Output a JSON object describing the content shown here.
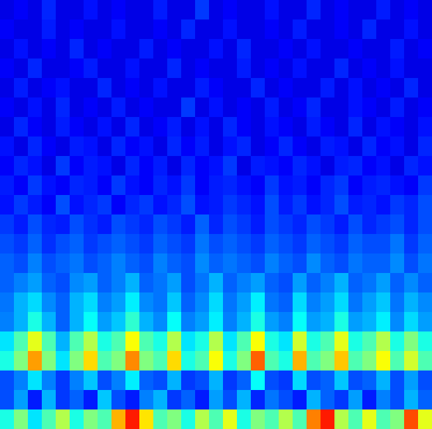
{
  "chart_data": {
    "type": "heatmap",
    "tick_labels": false,
    "xlim": [
      0,
      31
    ],
    "ylim": [
      0,
      22
    ],
    "color_range": [
      0,
      1
    ],
    "cells": [
      [
        0.1,
        0.12,
        0.1,
        0.16,
        0.1,
        0.1,
        0.14,
        0.1,
        0.12,
        0.1,
        0.1,
        0.15,
        0.1,
        0.1,
        0.18,
        0.1,
        0.12,
        0.1,
        0.1,
        0.14,
        0.1,
        0.1,
        0.16,
        0.1,
        0.12,
        0.1,
        0.1,
        0.15,
        0.1,
        0.12,
        0.1
      ],
      [
        0.12,
        0.1,
        0.1,
        0.15,
        0.1,
        0.12,
        0.1,
        0.1,
        0.14,
        0.1,
        0.1,
        0.12,
        0.1,
        0.16,
        0.1,
        0.1,
        0.14,
        0.1,
        0.1,
        0.12,
        0.1,
        0.15,
        0.1,
        0.1,
        0.12,
        0.1,
        0.16,
        0.1,
        0.1,
        0.14,
        0.1
      ],
      [
        0.1,
        0.14,
        0.1,
        0.12,
        0.1,
        0.16,
        0.1,
        0.12,
        0.1,
        0.1,
        0.15,
        0.1,
        0.12,
        0.1,
        0.1,
        0.14,
        0.1,
        0.16,
        0.1,
        0.1,
        0.12,
        0.1,
        0.14,
        0.1,
        0.1,
        0.12,
        0.1,
        0.1,
        0.15,
        0.1,
        0.12
      ],
      [
        0.12,
        0.1,
        0.16,
        0.1,
        0.1,
        0.12,
        0.15,
        0.1,
        0.1,
        0.14,
        0.1,
        0.1,
        0.16,
        0.1,
        0.12,
        0.1,
        0.1,
        0.15,
        0.1,
        0.12,
        0.1,
        0.14,
        0.1,
        0.1,
        0.16,
        0.1,
        0.12,
        0.1,
        0.14,
        0.1,
        0.1
      ],
      [
        0.1,
        0.15,
        0.1,
        0.12,
        0.14,
        0.1,
        0.1,
        0.16,
        0.1,
        0.12,
        0.1,
        0.14,
        0.1,
        0.1,
        0.15,
        0.12,
        0.1,
        0.1,
        0.16,
        0.1,
        0.12,
        0.1,
        0.1,
        0.15,
        0.1,
        0.14,
        0.1,
        0.12,
        0.1,
        0.16,
        0.1
      ],
      [
        0.12,
        0.1,
        0.14,
        0.1,
        0.16,
        0.1,
        0.12,
        0.1,
        0.15,
        0.1,
        0.12,
        0.1,
        0.1,
        0.18,
        0.1,
        0.14,
        0.1,
        0.12,
        0.1,
        0.15,
        0.1,
        0.12,
        0.16,
        0.1,
        0.1,
        0.14,
        0.12,
        0.1,
        0.15,
        0.1,
        0.12
      ],
      [
        0.1,
        0.16,
        0.12,
        0.1,
        0.15,
        0.12,
        0.1,
        0.14,
        0.1,
        0.16,
        0.1,
        0.12,
        0.15,
        0.1,
        0.14,
        0.1,
        0.16,
        0.12,
        0.1,
        0.14,
        0.12,
        0.1,
        0.15,
        0.12,
        0.1,
        0.16,
        0.1,
        0.14,
        0.12,
        0.1,
        0.14
      ],
      [
        0.14,
        0.1,
        0.16,
        0.12,
        0.1,
        0.15,
        0.14,
        0.1,
        0.16,
        0.12,
        0.14,
        0.1,
        0.16,
        0.12,
        0.15,
        0.1,
        0.14,
        0.16,
        0.1,
        0.12,
        0.16,
        0.12,
        0.1,
        0.15,
        0.14,
        0.1,
        0.16,
        0.12,
        0.14,
        0.1,
        0.16
      ],
      [
        0.12,
        0.16,
        0.14,
        0.1,
        0.18,
        0.12,
        0.15,
        0.14,
        0.1,
        0.16,
        0.12,
        0.15,
        0.1,
        0.16,
        0.12,
        0.14,
        0.18,
        0.1,
        0.15,
        0.14,
        0.12,
        0.16,
        0.14,
        0.1,
        0.15,
        0.16,
        0.12,
        0.14,
        0.1,
        0.16,
        0.14
      ],
      [
        0.15,
        0.12,
        0.18,
        0.14,
        0.12,
        0.16,
        0.15,
        0.12,
        0.18,
        0.14,
        0.12,
        0.16,
        0.14,
        0.18,
        0.12,
        0.15,
        0.16,
        0.14,
        0.12,
        0.18,
        0.14,
        0.15,
        0.12,
        0.16,
        0.18,
        0.12,
        0.15,
        0.16,
        0.14,
        0.12,
        0.18
      ],
      [
        0.14,
        0.18,
        0.15,
        0.12,
        0.2,
        0.14,
        0.16,
        0.18,
        0.12,
        0.16,
        0.18,
        0.14,
        0.16,
        0.2,
        0.14,
        0.15,
        0.18,
        0.16,
        0.14,
        0.2,
        0.15,
        0.18,
        0.14,
        0.16,
        0.2,
        0.15,
        0.16,
        0.14,
        0.18,
        0.16,
        0.2
      ],
      [
        0.18,
        0.15,
        0.2,
        0.16,
        0.15,
        0.2,
        0.17,
        0.15,
        0.2,
        0.18,
        0.16,
        0.2,
        0.18,
        0.15,
        0.22,
        0.16,
        0.2,
        0.18,
        0.15,
        0.2,
        0.18,
        0.16,
        0.2,
        0.18,
        0.15,
        0.2,
        0.16,
        0.18,
        0.2,
        0.16,
        0.2
      ],
      [
        0.2,
        0.18,
        0.22,
        0.17,
        0.2,
        0.22,
        0.18,
        0.2,
        0.22,
        0.2,
        0.18,
        0.22,
        0.2,
        0.18,
        0.24,
        0.2,
        0.22,
        0.2,
        0.18,
        0.22,
        0.2,
        0.18,
        0.22,
        0.2,
        0.18,
        0.22,
        0.2,
        0.2,
        0.24,
        0.18,
        0.22
      ],
      [
        0.22,
        0.2,
        0.25,
        0.2,
        0.22,
        0.24,
        0.2,
        0.22,
        0.25,
        0.22,
        0.2,
        0.25,
        0.22,
        0.2,
        0.26,
        0.22,
        0.24,
        0.22,
        0.2,
        0.25,
        0.22,
        0.2,
        0.26,
        0.22,
        0.2,
        0.24,
        0.22,
        0.22,
        0.26,
        0.2,
        0.24
      ],
      [
        0.22,
        0.25,
        0.28,
        0.22,
        0.2,
        0.26,
        0.28,
        0.22,
        0.25,
        0.3,
        0.22,
        0.24,
        0.28,
        0.2,
        0.24,
        0.3,
        0.22,
        0.25,
        0.28,
        0.22,
        0.2,
        0.28,
        0.22,
        0.25,
        0.3,
        0.22,
        0.24,
        0.28,
        0.22,
        0.26,
        0.22
      ],
      [
        0.24,
        0.3,
        0.34,
        0.26,
        0.22,
        0.3,
        0.34,
        0.25,
        0.28,
        0.36,
        0.26,
        0.24,
        0.32,
        0.22,
        0.26,
        0.34,
        0.24,
        0.28,
        0.36,
        0.24,
        0.22,
        0.34,
        0.25,
        0.28,
        0.34,
        0.24,
        0.28,
        0.32,
        0.24,
        0.3,
        0.26
      ],
      [
        0.25,
        0.3,
        0.4,
        0.3,
        0.22,
        0.3,
        0.38,
        0.28,
        0.32,
        0.42,
        0.3,
        0.26,
        0.38,
        0.25,
        0.28,
        0.36,
        0.25,
        0.3,
        0.4,
        0.28,
        0.25,
        0.38,
        0.28,
        0.3,
        0.4,
        0.28,
        0.3,
        0.36,
        0.26,
        0.34,
        0.28
      ],
      [
        0.35,
        0.45,
        0.6,
        0.45,
        0.3,
        0.45,
        0.55,
        0.4,
        0.45,
        0.62,
        0.45,
        0.4,
        0.55,
        0.35,
        0.4,
        0.55,
        0.35,
        0.45,
        0.62,
        0.4,
        0.35,
        0.58,
        0.4,
        0.45,
        0.6,
        0.4,
        0.45,
        0.55,
        0.4,
        0.5,
        0.4
      ],
      [
        0.4,
        0.5,
        0.72,
        0.5,
        0.35,
        0.5,
        0.66,
        0.45,
        0.5,
        0.74,
        0.5,
        0.45,
        0.66,
        0.4,
        0.45,
        0.62,
        0.4,
        0.5,
        0.78,
        0.45,
        0.4,
        0.7,
        0.45,
        0.5,
        0.68,
        0.45,
        0.5,
        0.62,
        0.45,
        0.58,
        0.45
      ],
      [
        0.2,
        0.25,
        0.35,
        0.25,
        0.18,
        0.25,
        0.32,
        0.2,
        0.25,
        0.36,
        0.22,
        0.2,
        0.3,
        0.18,
        0.2,
        0.3,
        0.18,
        0.22,
        0.38,
        0.2,
        0.18,
        0.34,
        0.2,
        0.22,
        0.32,
        0.2,
        0.22,
        0.3,
        0.2,
        0.28,
        0.2
      ],
      [
        0.2,
        0.28,
        0.15,
        0.3,
        0.18,
        0.22,
        0.15,
        0.32,
        0.2,
        0.15,
        0.25,
        0.3,
        0.18,
        0.22,
        0.15,
        0.28,
        0.2,
        0.3,
        0.16,
        0.24,
        0.2,
        0.15,
        0.3,
        0.22,
        0.18,
        0.28,
        0.15,
        0.25,
        0.2,
        0.3,
        0.22
      ],
      [
        0.4,
        0.5,
        0.35,
        0.45,
        0.55,
        0.4,
        0.5,
        0.45,
        0.7,
        0.85,
        0.65,
        0.45,
        0.5,
        0.4,
        0.55,
        0.45,
        0.6,
        0.4,
        0.5,
        0.45,
        0.55,
        0.45,
        0.75,
        0.85,
        0.55,
        0.45,
        0.6,
        0.45,
        0.5,
        0.8,
        0.6
      ]
    ]
  }
}
